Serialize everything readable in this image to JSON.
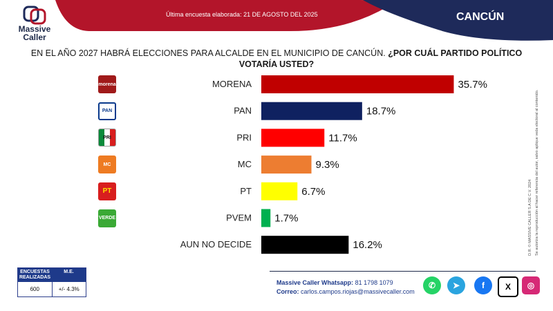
{
  "header": {
    "logo_line1": "Massive",
    "logo_line2": "Caller",
    "last_survey": "Última encuesta elaborada: 21 DE AGOSTO DEL 2025",
    "city": "CANCÚN"
  },
  "question": {
    "part1": "EN EL AÑO 2027 HABRÁ ELECCIONES PARA ALCALDE EN EL MUNICIPIO DE CANCÚN.",
    "part2": "¿POR CUÁL PARTIDO POLÍTICO VOTARÍA USTED?"
  },
  "chart_data": {
    "type": "bar",
    "orientation": "horizontal",
    "categories": [
      "MORENA",
      "PAN",
      "PRI",
      "MC",
      "PT",
      "PVEM",
      "AUN NO DECIDE"
    ],
    "values": [
      35.7,
      18.7,
      11.7,
      9.3,
      6.7,
      1.7,
      16.2
    ],
    "value_labels": [
      "35.7%",
      "18.7%",
      "11.7%",
      "9.3%",
      "6.7%",
      "1.7%",
      "16.2%"
    ],
    "colors": [
      "#c00000",
      "#0f2160",
      "#ff0000",
      "#ed7d31",
      "#ffff00",
      "#00b050",
      "#000000"
    ],
    "xlim": [
      0,
      40
    ],
    "grid": false,
    "legend": "none"
  },
  "party_icons": [
    {
      "name": "morena",
      "text": "morena",
      "color": "#a01a1a"
    },
    {
      "name": "pan",
      "text": "PAN",
      "color": "#0a3a8c"
    },
    {
      "name": "pri",
      "text": "PRI",
      "color": "#ffffff"
    },
    {
      "name": "mc",
      "text": "MC",
      "color": "#ee7b22"
    },
    {
      "name": "pt",
      "text": "PT",
      "color": "#d81e1e"
    },
    {
      "name": "pvem",
      "text": "VERDE",
      "color": "#3aa935"
    }
  ],
  "rights": {
    "line1": "D.R. © MASSIVE CALLER S.A DE C.V. 2024",
    "line2": "Se autoriza la reproducción al hacer referencia del autor, salvo aplique veda electoral al contenido."
  },
  "survey": {
    "col1_header": "ENCUESTAS REALIZADAS",
    "col2_header": "M.E.",
    "col1_value": "600",
    "col2_value": "+/- 4.3%"
  },
  "contact": {
    "whatsapp_label": "Massive Caller Whatsapp:",
    "whatsapp_value": "81 1798 1079",
    "email_label": "Correo:",
    "email_value": "carlos.campos.riojas@massivecaller.com"
  },
  "social": [
    {
      "name": "whatsapp",
      "color": "#25d366",
      "glyph": "✆"
    },
    {
      "name": "telegram",
      "color": "#2aa4df",
      "glyph": "➤"
    },
    {
      "name": "facebook",
      "color": "#1877f2",
      "glyph": "f"
    },
    {
      "name": "x",
      "color": "#000000",
      "glyph": "X"
    },
    {
      "name": "instagram",
      "color": "#d62976",
      "glyph": "◎"
    }
  ]
}
